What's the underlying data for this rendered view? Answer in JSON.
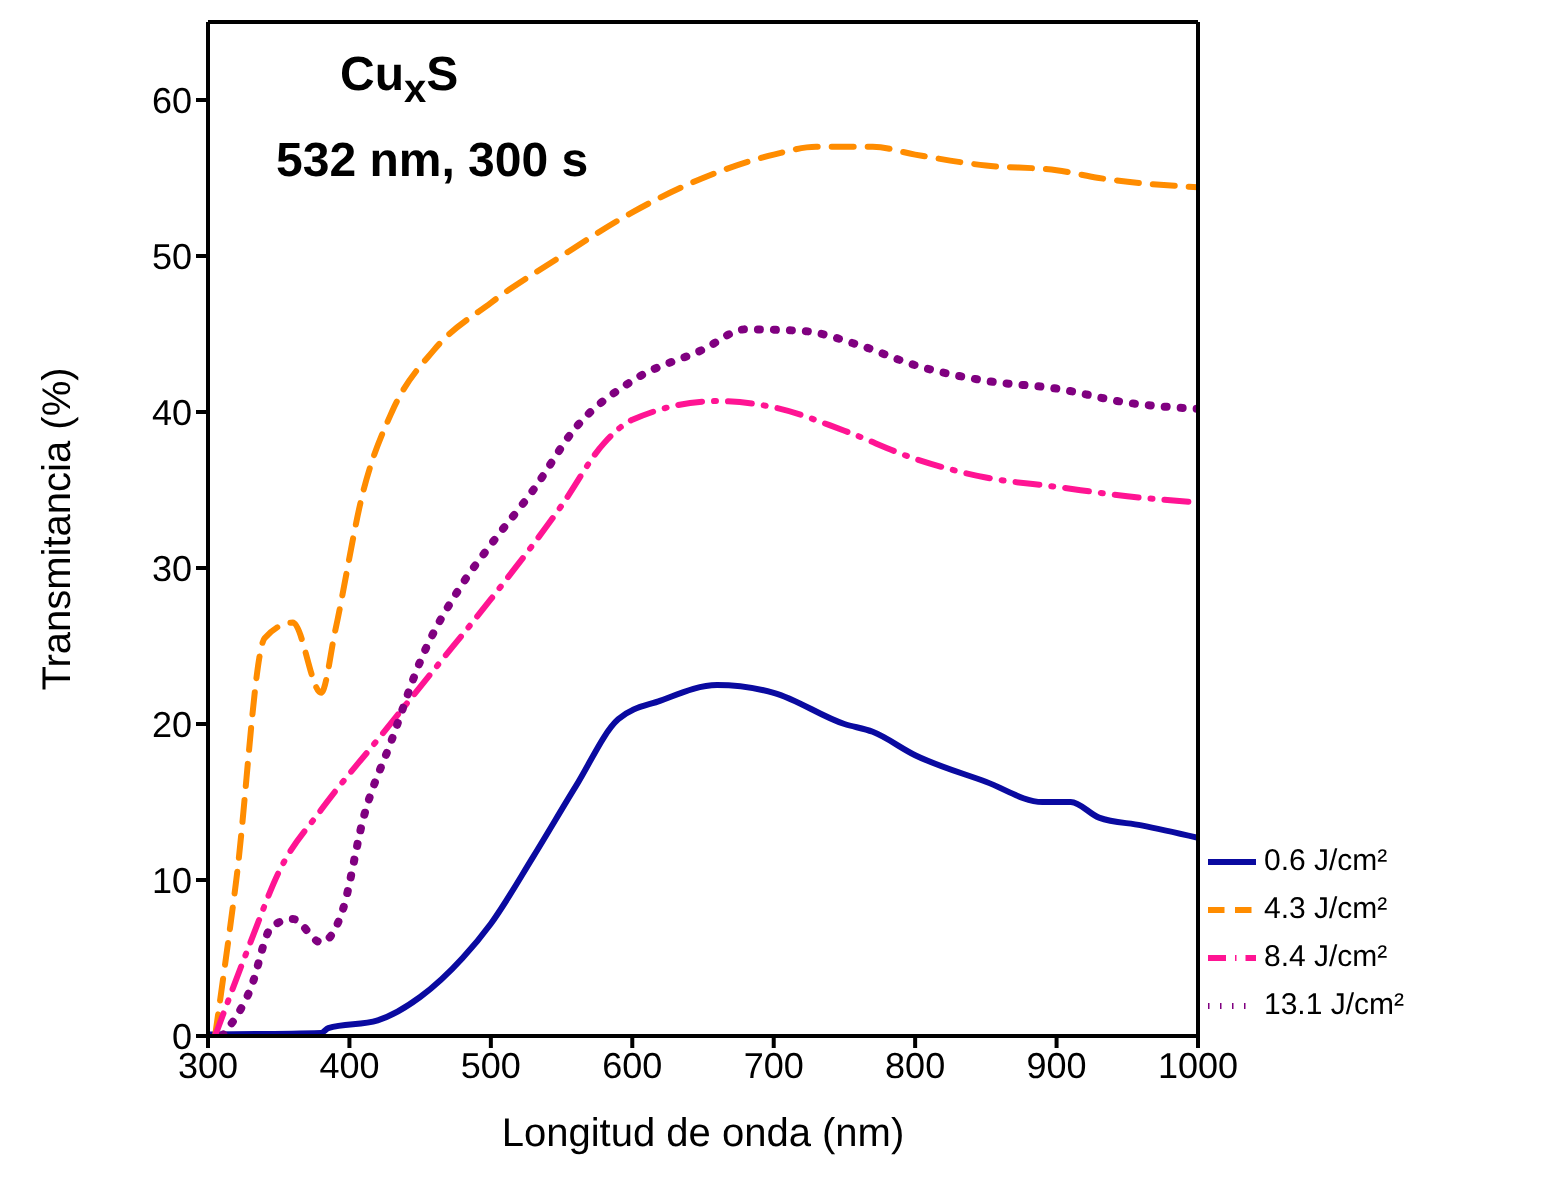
{
  "chart_data": {
    "type": "line",
    "title": "Cu$_{x}$S",
    "subtitle": "532 nm, 300 s",
    "xlabel": "Longitud de onda (nm)",
    "ylabel": "Transmitancia (%)",
    "xlim": [
      300,
      1000
    ],
    "xticks": [
      300,
      400,
      500,
      600,
      700,
      800,
      900,
      1000
    ],
    "ylim": [
      0,
      65
    ],
    "yticks": [
      0,
      10,
      20,
      30,
      40,
      50,
      60
    ],
    "legend": "bottom right",
    "marker": "none",
    "series": [
      {
        "name": "0.6 J/cm²",
        "color": "#0a0aa0",
        "line_style": "solid",
        "x": [
          300,
          380,
          385,
          420,
          450,
          480,
          500,
          530,
          560,
          590,
          620,
          660,
          700,
          750,
          770,
          800,
          850,
          890,
          910,
          930,
          960,
          1000
        ],
        "values": [
          0.1,
          0.2,
          0.5,
          1,
          2.5,
          5,
          7.2,
          11.5,
          16,
          20.3,
          21.5,
          22.5,
          22,
          20,
          19.5,
          18,
          16.3,
          15,
          15,
          14,
          13.5,
          12.7
        ]
      },
      {
        "name": "4.3 J/cm²",
        "color": "#ff8c00",
        "line_style": "dashed",
        "x": [
          305,
          320,
          340,
          360,
          380,
          390,
          410,
          430,
          460,
          500,
          550,
          600,
          650,
          700,
          730,
          770,
          800,
          850,
          900,
          930,
          1000
        ],
        "values": [
          0,
          10,
          25.5,
          26.5,
          22,
          26,
          35,
          40,
          44,
          47,
          50,
          52.8,
          55,
          56.5,
          57,
          57,
          56.5,
          55.8,
          55.5,
          55,
          54.4
        ]
      },
      {
        "name": "8.4 J/cm²",
        "color": "#ff1493",
        "line_style": "dashdot",
        "x": [
          305,
          330,
          350,
          380,
          420,
          460,
          500,
          550,
          580,
          600,
          660,
          700,
          750,
          800,
          850,
          900,
          950,
          1000
        ],
        "values": [
          0,
          6,
          10.5,
          14.5,
          19,
          23.5,
          28,
          34,
          38,
          39.5,
          40.7,
          40.3,
          38.8,
          37,
          35.8,
          35.2,
          34.6,
          34.2
        ]
      },
      {
        "name": "13.1 J/cm²",
        "color": "#800080",
        "line_style": "dotted",
        "x": [
          310,
          330,
          345,
          360,
          380,
          395,
          410,
          430,
          450,
          480,
          500,
          530,
          560,
          600,
          650,
          680,
          720,
          760,
          800,
          850,
          900,
          950,
          1000
        ],
        "values": [
          0,
          3,
          7,
          7.5,
          6,
          8,
          14,
          19,
          24,
          29,
          31.5,
          35,
          39,
          42,
          44,
          45.3,
          45.2,
          44.3,
          43,
          42,
          41.5,
          40.6,
          40.2
        ]
      }
    ]
  }
}
